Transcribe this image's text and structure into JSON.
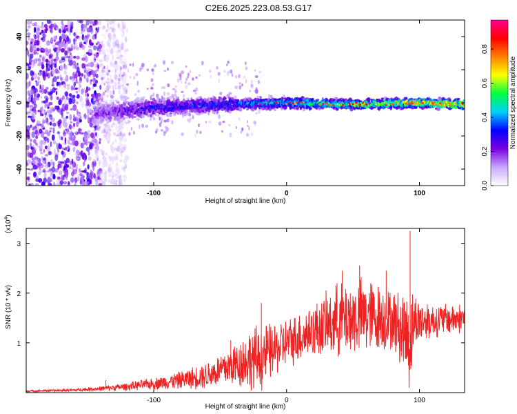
{
  "title": "C2E6.2025.223.08.53.G17",
  "chart_data": [
    {
      "type": "heatmap",
      "xlabel": "Height of straight line (km)",
      "ylabel": "Frequency (Hz)",
      "xlim": [
        -196,
        134
      ],
      "ylim": [
        -50,
        50
      ],
      "x_ticks": [
        -100,
        0,
        100
      ],
      "y_ticks": [
        -40,
        -20,
        0,
        20,
        40
      ],
      "colorbar": {
        "label": "Normalized spectral amplitude",
        "range": [
          0,
          0.97
        ],
        "ticks": [
          "0.0",
          "0.2",
          "0.4",
          "0.6",
          "0.8"
        ],
        "colors": [
          "#ffffff",
          "#c8a8ff",
          "#7a00e0",
          "#0000ff",
          "#00d0ff",
          "#00ff40",
          "#ffff00",
          "#ff8000",
          "#ff0000",
          "#ff0090"
        ]
      },
      "center_frequency_trace": [
        {
          "x": -135,
          "f": -6,
          "amp": 0.25
        },
        {
          "x": -100,
          "f": -3,
          "amp": 0.35
        },
        {
          "x": -50,
          "f": -1,
          "amp": 0.4
        },
        {
          "x": 0,
          "f": 0,
          "amp": 0.55
        },
        {
          "x": 50,
          "f": -1,
          "amp": 0.7
        },
        {
          "x": 100,
          "f": 0,
          "amp": 0.85
        },
        {
          "x": 134,
          "f": -1,
          "amp": 0.9
        }
      ]
    },
    {
      "type": "line",
      "xlabel": "Height of straight line (km)",
      "ylabel": "SNR (10 * v/v)",
      "y_scale_label": "(x10",
      "y_scale_exp": "4",
      "y_scale_close": ")",
      "xlim": [
        -196,
        134
      ],
      "ylim": [
        0,
        3.3
      ],
      "x_ticks": [
        -100,
        0,
        100
      ],
      "y_ticks": [
        1,
        2,
        3
      ],
      "series": [
        {
          "color": "#ee2222",
          "envelope": {
            "x": [
              -196,
              -160,
              -140,
              -120,
              -100,
              -80,
              -60,
              -50,
              -40,
              -30,
              -20,
              -10,
              0,
              20,
              40,
              60,
              80,
              90,
              93,
              96,
              110,
              134
            ],
            "mean": [
              0.03,
              0.05,
              0.08,
              0.12,
              0.18,
              0.25,
              0.35,
              0.45,
              0.55,
              0.65,
              0.7,
              0.85,
              1.0,
              1.25,
              1.45,
              1.55,
              1.45,
              1.2,
              1.0,
              1.45,
              1.45,
              1.5
            ],
            "amp": [
              0.02,
              0.03,
              0.05,
              0.08,
              0.12,
              0.18,
              0.28,
              0.35,
              0.45,
              0.6,
              0.7,
              0.55,
              0.5,
              0.55,
              0.75,
              0.8,
              0.6,
              0.9,
              1.1,
              0.55,
              0.35,
              0.3
            ]
          },
          "peaks": [
            {
              "x": -136,
              "y": 0.25
            },
            {
              "x": -42,
              "y": 1.05
            },
            {
              "x": -19,
              "y": 1.8
            },
            {
              "x": 38,
              "y": 2.2
            },
            {
              "x": 42,
              "y": 2.45
            },
            {
              "x": 55,
              "y": 2.55
            },
            {
              "x": 75,
              "y": 2.45
            },
            {
              "x": 93,
              "y": 3.25
            }
          ]
        }
      ]
    }
  ]
}
